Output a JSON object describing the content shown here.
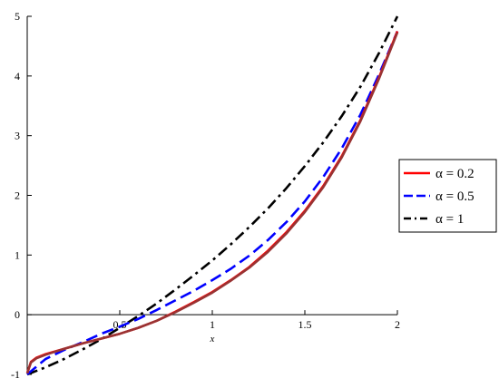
{
  "chart_data": {
    "type": "line",
    "title": "",
    "xlabel": "x",
    "ylabel": "",
    "xlim": [
      0,
      2
    ],
    "ylim": [
      -1,
      5
    ],
    "x_ticks": [
      {
        "value": 0.5,
        "label": "0.5"
      },
      {
        "value": 1,
        "label": "1"
      },
      {
        "value": 1.5,
        "label": "1.5"
      },
      {
        "value": 2,
        "label": "2"
      }
    ],
    "y_ticks": [
      {
        "value": -1,
        "label": "-1"
      },
      {
        "value": 0,
        "label": "0"
      },
      {
        "value": 1,
        "label": "1"
      },
      {
        "value": 2,
        "label": "2"
      },
      {
        "value": 3,
        "label": "3"
      },
      {
        "value": 4,
        "label": "4"
      },
      {
        "value": 5,
        "label": "5"
      }
    ],
    "grid": false,
    "legend_position": "right",
    "series": [
      {
        "name": "α = 0.2",
        "color": "#ff0000",
        "dash": "solid",
        "x": [
          0,
          0.02,
          0.05,
          0.1,
          0.2,
          0.3,
          0.4,
          0.5,
          0.6,
          0.7,
          0.8,
          0.9,
          1.0,
          1.1,
          1.2,
          1.3,
          1.4,
          1.5,
          1.6,
          1.7,
          1.8,
          1.9,
          2.0
        ],
        "y": [
          -0.98,
          -0.79,
          -0.72,
          -0.66,
          -0.57,
          -0.48,
          -0.4,
          -0.32,
          -0.22,
          -0.1,
          0.05,
          0.21,
          0.38,
          0.58,
          0.8,
          1.07,
          1.38,
          1.74,
          2.16,
          2.66,
          3.26,
          3.97,
          4.75
        ]
      },
      {
        "name": "α = 0.5",
        "color": "#0000ff",
        "dash": "dash",
        "x": [
          0,
          0.1,
          0.2,
          0.3,
          0.4,
          0.5,
          0.6,
          0.7,
          0.8,
          0.9,
          1.0,
          1.1,
          1.2,
          1.3,
          1.4,
          1.5,
          1.6,
          1.7,
          1.8,
          1.9,
          2.0
        ],
        "y": [
          -1.0,
          -0.74,
          -0.59,
          -0.46,
          -0.32,
          -0.2,
          -0.07,
          0.08,
          0.24,
          0.4,
          0.58,
          0.77,
          0.99,
          1.25,
          1.55,
          1.9,
          2.31,
          2.79,
          3.35,
          4.02,
          4.75
        ]
      },
      {
        "name": "α = 1",
        "color": "#000000",
        "dash": "dashdot",
        "x": [
          0,
          0.1,
          0.2,
          0.3,
          0.4,
          0.5,
          0.6,
          0.7,
          0.8,
          0.9,
          1.0,
          1.1,
          1.2,
          1.3,
          1.4,
          1.5,
          1.6,
          1.7,
          1.8,
          1.9,
          2.0
        ],
        "y": [
          -1.0,
          -0.88,
          -0.74,
          -0.58,
          -0.41,
          -0.22,
          -0.02,
          0.19,
          0.42,
          0.66,
          0.91,
          1.18,
          1.47,
          1.78,
          2.12,
          2.49,
          2.89,
          3.33,
          3.82,
          4.38,
          5.0
        ]
      },
      {
        "name": "",
        "color": "#993333",
        "dash": "solid",
        "x": [
          0,
          0.02,
          0.05,
          0.1,
          0.2,
          0.3,
          0.4,
          0.5,
          0.6,
          0.7,
          0.8,
          0.9,
          1.0,
          1.1,
          1.2,
          1.3,
          1.4,
          1.5,
          1.6,
          1.7,
          1.8,
          1.9,
          2.0
        ],
        "y": [
          -0.98,
          -0.8,
          -0.73,
          -0.67,
          -0.57,
          -0.48,
          -0.4,
          -0.32,
          -0.22,
          -0.1,
          0.04,
          0.2,
          0.37,
          0.57,
          0.79,
          1.05,
          1.36,
          1.72,
          2.14,
          2.64,
          3.24,
          3.95,
          4.73
        ]
      }
    ]
  }
}
